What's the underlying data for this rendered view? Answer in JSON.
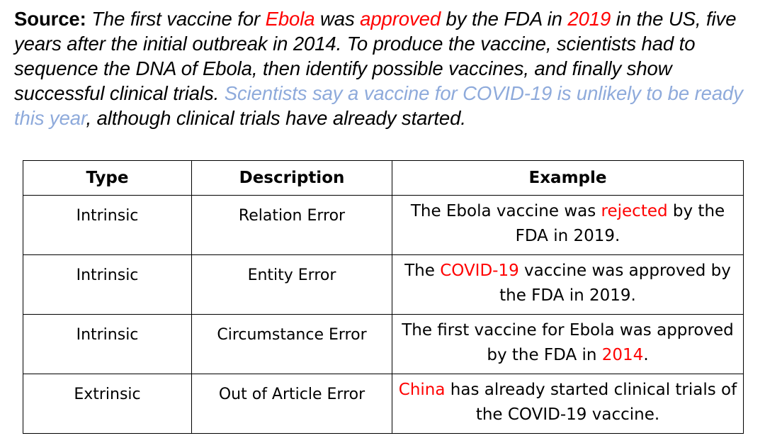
{
  "source": {
    "label": "Source:",
    "text_1": " The first vaccine for ",
    "hl_ebola": "Ebola",
    "text_2": " was ",
    "hl_approved": "approved",
    "text_3": " by the FDA in ",
    "hl_2019": "2019",
    "text_4": " in the US, five years after the initial outbreak in 2014. To produce the vaccine, scientists had to sequence the DNA of Ebola, then identify possible vaccines, and finally show successful clinical trials. ",
    "hl_sentence": "Scientists say a vaccine for COVID-19 is unlikely to be ready this year",
    "text_5": ", although clinical trials have already started."
  },
  "table": {
    "headers": [
      "Type",
      "Description",
      "Example"
    ],
    "rows": [
      {
        "type": "Intrinsic",
        "description": "Relation Error",
        "example_pre": "The Ebola vaccine was ",
        "example_hl": "rejected",
        "example_post": " by the FDA in 2019."
      },
      {
        "type": "Intrinsic",
        "description": "Entity Error",
        "example_pre": "The ",
        "example_hl": "COVID-19",
        "example_post": " vaccine was approved by the FDA in 2019."
      },
      {
        "type": "Intrinsic",
        "description": "Circumstance Error",
        "example_pre": "The first vaccine for Ebola was approved by the FDA in ",
        "example_hl": "2014",
        "example_post": "."
      },
      {
        "type": "Extrinsic",
        "description": "Out of Article Error",
        "example_pre": "",
        "example_hl": "China",
        "example_post": " has already started clinical trials of the COVID-19 vaccine."
      }
    ]
  },
  "colors": {
    "highlight_red": "#ff0000",
    "highlight_blue": "#8eaadb"
  }
}
